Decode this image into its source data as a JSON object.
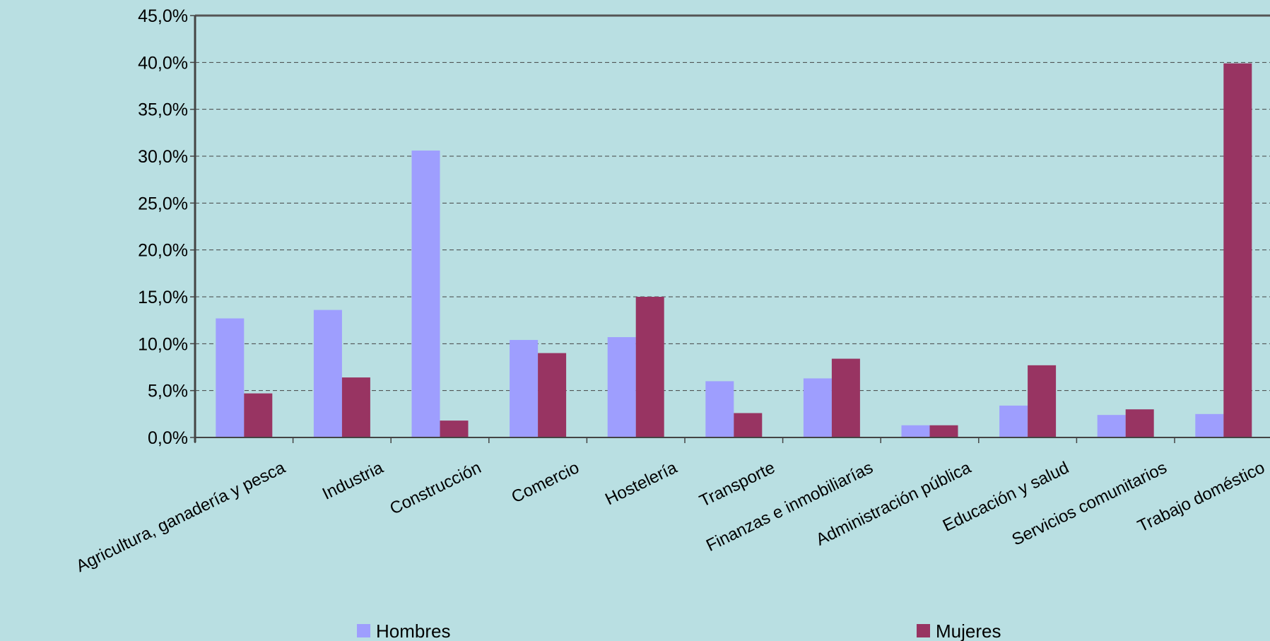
{
  "chart_data": {
    "type": "bar",
    "categories": [
      "Agricultura, ganadería y pesca",
      "Industria",
      "Construcción",
      "Comercio",
      "Hostelería",
      "Transporte",
      "Finanzas e inmobiliarías",
      "Administración pública",
      "Educación y salud",
      "Servicios comunitarios",
      "Trabajo doméstico"
    ],
    "series": [
      {
        "name": "Hombres",
        "color": "#9e9efe",
        "values": [
          12.7,
          13.6,
          30.6,
          10.4,
          10.7,
          6.0,
          6.3,
          1.3,
          3.4,
          2.4,
          2.5
        ]
      },
      {
        "name": "Mujeres",
        "color": "#983462",
        "values": [
          4.7,
          6.4,
          1.8,
          9.0,
          15.0,
          2.6,
          8.4,
          1.3,
          7.7,
          3.0,
          39.9
        ]
      }
    ],
    "y_ticks": [
      "0,0%",
      "5,0%",
      "10,0%",
      "15,0%",
      "20,0%",
      "25,0%",
      "30,0%",
      "35,0%",
      "40,0%",
      "45,0%"
    ],
    "ylim": [
      0,
      45
    ],
    "grid": true,
    "legend_position": "bottom"
  }
}
